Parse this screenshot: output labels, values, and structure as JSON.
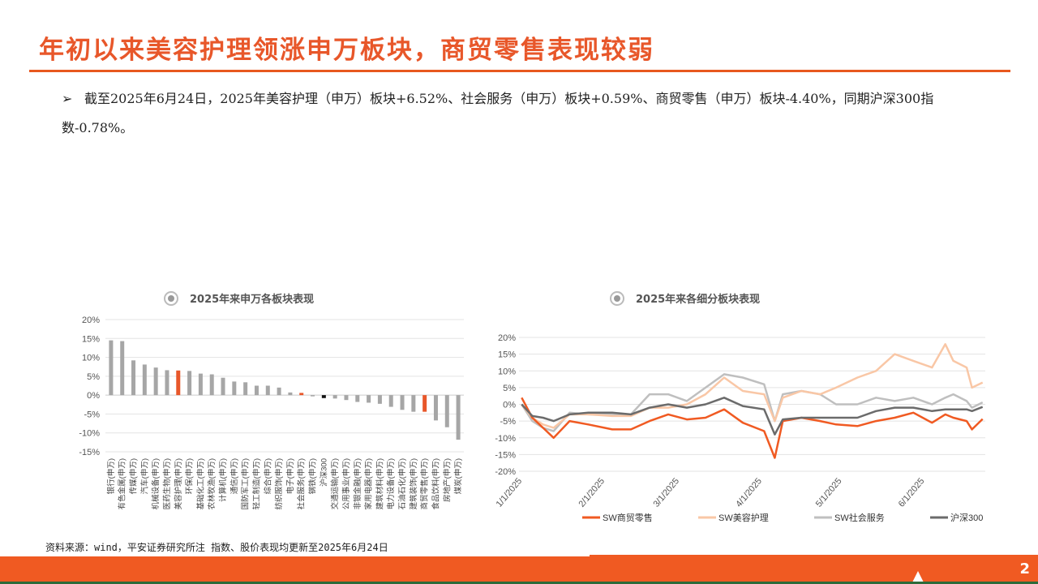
{
  "title": "年初以来美容护理领涨申万板块，商贸零售表现较弱",
  "bullet": {
    "icon": "arrow-bullet-icon",
    "text": "截至2025年6月24日，2025年美容护理（申万）板块+6.52%、社会服务（申万）板块+0.59%、商贸零售（申万）板块-4.40%，同期沪深300指数-0.78%。"
  },
  "source": "资料来源：wind，平安证券研究所注 指数、股价表现均更新至2025年6月24日",
  "page_number": "2",
  "colors": {
    "accent": "#e8572a",
    "gray": "#a6a6a6",
    "black": "#111111",
    "peach": "#f9c7a6",
    "light_gray": "#bfbfbf",
    "dark_gray": "#6b6b6b"
  },
  "chart_data": [
    {
      "type": "bar",
      "title": "2025年来申万各板块表现",
      "ylim": [
        -15,
        20
      ],
      "yticks": [
        "20%",
        "15%",
        "10%",
        "5%",
        "0%",
        "-5%",
        "-10%",
        "-15%"
      ],
      "ytick_values": [
        20,
        15,
        10,
        5,
        0,
        -5,
        -10,
        -15
      ],
      "categories": [
        "银行(申万)",
        "有色金属(申万)",
        "传媒(申万)",
        "汽车(申万)",
        "机械设备(申万)",
        "医药生物(申万)",
        "美容护理(申万)",
        "环保(申万)",
        "基础化工(申万)",
        "农林牧渔(申万)",
        "计算机(申万)",
        "通信(申万)",
        "国防军工(申万)",
        "轻工制造(申万)",
        "综合(申万)",
        "纺织服饰(申万)",
        "电子(申万)",
        "社会服务(申万)",
        "钢铁(申万)",
        "沪深300",
        "交通运输(申万)",
        "公用事业(申万)",
        "非银金融(申万)",
        "家用电器(申万)",
        "建筑材料(申万)",
        "电力设备(申万)",
        "石油石化(申万)",
        "建筑装饰(申万)",
        "商贸零售(申万)",
        "食品饮料(申万)",
        "房地产(申万)",
        "煤炭(申万)"
      ],
      "values": [
        14.5,
        14.3,
        9.2,
        8.1,
        7.3,
        6.6,
        6.52,
        6.4,
        5.7,
        5.5,
        4.6,
        3.6,
        3.4,
        2.5,
        2.5,
        2.0,
        0.7,
        0.59,
        -0.2,
        -0.78,
        -0.9,
        -1.3,
        -1.8,
        -2.0,
        -2.3,
        -3.1,
        -3.9,
        -4.4,
        -4.4,
        -6.7,
        -8.5,
        -11.8
      ],
      "highlight": {
        "美容护理(申万)": "accent",
        "社会服务(申万)": "accent",
        "商贸零售(申万)": "accent",
        "沪深300": "black"
      }
    },
    {
      "type": "line",
      "title": "2025年来各细分板块表现",
      "ylim": [
        -20,
        20
      ],
      "yticks": [
        "20%",
        "15%",
        "10%",
        "5%",
        "0%",
        "-5%",
        "-10%",
        "-15%",
        "-20%"
      ],
      "ytick_values": [
        20,
        15,
        10,
        5,
        0,
        -5,
        -10,
        -15,
        -20
      ],
      "xtick_labels": [
        "1/1/2025",
        "2/1/2025",
        "3/1/2025",
        "4/1/2025",
        "5/1/2025",
        "6/1/2025"
      ],
      "xtick_days": [
        0,
        31,
        59,
        90,
        120,
        151
      ],
      "xlim_days": [
        0,
        175
      ],
      "x_days": [
        1,
        5,
        9,
        13,
        19,
        26,
        35,
        42,
        49,
        56,
        63,
        70,
        77,
        84,
        92,
        96,
        99,
        106,
        113,
        119,
        127,
        134,
        141,
        148,
        155,
        160,
        163,
        168,
        170,
        174
      ],
      "series": [
        {
          "name": "SW商贸零售",
          "color": "#f05a22",
          "values": [
            2,
            -4,
            -7,
            -10,
            -5,
            -6,
            -7.5,
            -7.5,
            -5,
            -3,
            -4.5,
            -4,
            -1.5,
            -5.5,
            -8,
            -16,
            -5,
            -4,
            -5,
            -6,
            -6.5,
            -5,
            -4,
            -2.5,
            -5.5,
            -3,
            -4,
            -5,
            -7.5,
            -4.4
          ]
        },
        {
          "name": "SW美容护理",
          "color": "#f9c7a6",
          "values": [
            0,
            -4,
            -6,
            -7,
            -3,
            -3,
            -3.5,
            -3.5,
            -1,
            -1,
            0,
            3,
            8,
            4,
            3,
            -5,
            2,
            4,
            3,
            5,
            8,
            10,
            15,
            13,
            11,
            18,
            13,
            11,
            5,
            6.52
          ]
        },
        {
          "name": "SW社会服务",
          "color": "#bfbfbf",
          "values": [
            0,
            -5,
            -7,
            -8,
            -2.5,
            -3,
            -3,
            -3,
            3,
            3,
            1,
            5,
            9,
            8,
            6,
            -5,
            3,
            4,
            3,
            0,
            0,
            2,
            1,
            2,
            0,
            2,
            3,
            1,
            -1,
            0.59
          ]
        },
        {
          "name": "沪深300",
          "color": "#6b6b6b",
          "values": [
            0,
            -3.5,
            -4,
            -5,
            -3,
            -2.5,
            -2.5,
            -3,
            -1,
            0,
            -1,
            0,
            2,
            -0.5,
            -1.5,
            -9,
            -4.5,
            -4,
            -4,
            -4,
            -4,
            -2,
            -1,
            -1,
            -2,
            -1.5,
            -1.5,
            -1.5,
            -2,
            -0.78
          ]
        }
      ],
      "legend": "bottom"
    }
  ]
}
